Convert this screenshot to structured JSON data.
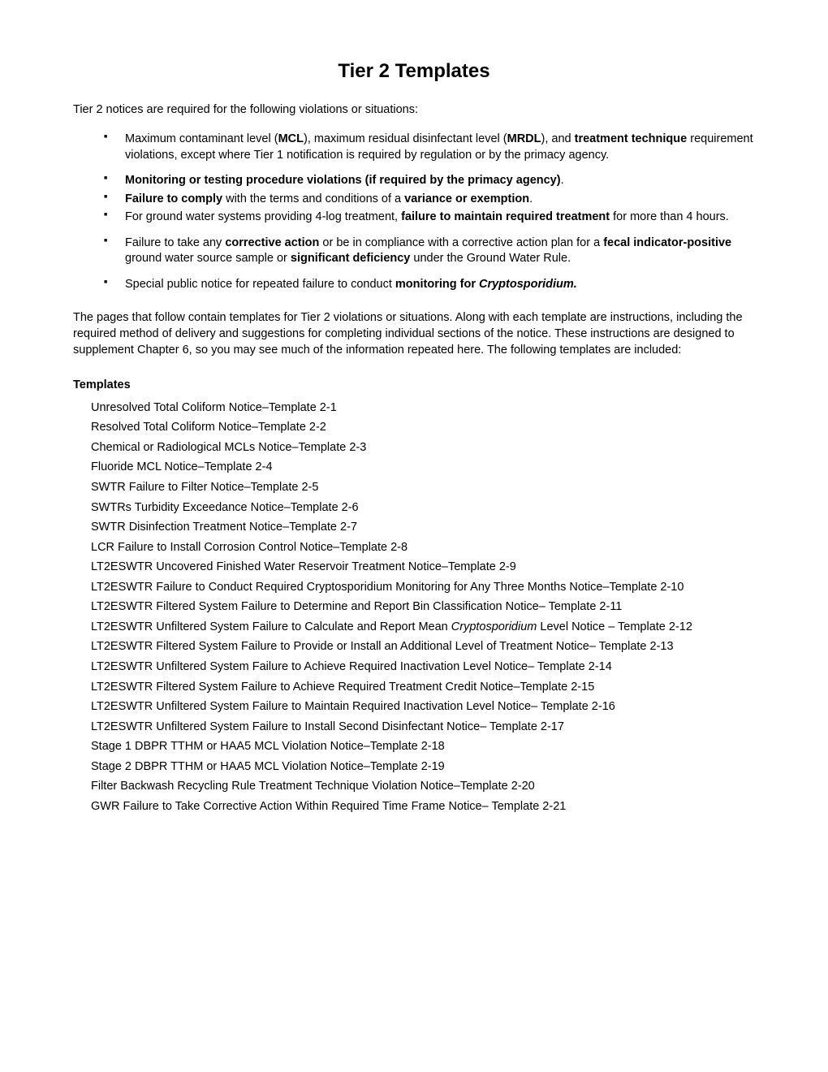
{
  "title": "Tier 2 Templates",
  "intro": "Tier 2 notices are required for the following violations or situations:",
  "bullets": [
    {
      "html": "Maximum contaminant level (<strong>MCL</strong>), maximum residual disinfectant level (<strong>MRDL</strong>), and <strong>treatment technique</strong> requirement violations, except where Tier 1 notification is required by regulation or by the primacy agency.",
      "spaced": true
    },
    {
      "html": "<strong>Monitoring or testing procedure violations (if required by the primacy agency)</strong>.",
      "spaced": false
    },
    {
      "html": "<strong>Failure to comply</strong> with the terms and conditions of a <strong>variance or exemption</strong>.",
      "spaced": false
    },
    {
      "html": "For ground water systems providing 4-log treatment, <strong>failure to maintain required treatment</strong> for more than 4 hours.",
      "spaced": true
    },
    {
      "html": "Failure to take any <strong>corrective action</strong> or be in compliance with a corrective action plan for a <strong>fecal indicator-positive</strong> ground water source sample or <strong>significant deficiency</strong> under the Ground Water Rule.",
      "spaced": true
    },
    {
      "html": "Special public notice for repeated failure to conduct <strong>monitoring for <em>Cryptosporidium.</em></strong>",
      "spaced": false
    }
  ],
  "after_bullets": "The pages that follow contain templates for Tier 2 violations or situations. Along with each template are instructions, including the required method of delivery and suggestions for completing individual sections of the notice. These instructions are designed to supplement Chapter 6, so you may see much of the information repeated here. The following templates are included:",
  "templates_label": "Templates",
  "templates": [
    "Unresolved Total Coliform Notice–Template 2-1",
    "Resolved Total Coliform Notice–Template 2-2",
    "Chemical or Radiological MCLs Notice–Template 2-3",
    "Fluoride MCL Notice–Template 2-4",
    "SWTR Failure to Filter Notice–Template 2-5",
    "SWTRs Turbidity Exceedance Notice–Template 2-6",
    "SWTR Disinfection Treatment Notice–Template 2-7",
    "LCR Failure to Install Corrosion Control Notice–Template 2-8",
    "LT2ESWTR Uncovered Finished Water Reservoir Treatment Notice–Template 2-9",
    "LT2ESWTR Failure to Conduct Required Cryptosporidium Monitoring for Any Three Months Notice–Template 2-10",
    "LT2ESWTR Filtered System Failure to Determine and Report Bin Classification Notice– Template 2-11",
    "LT2ESWTR Unfiltered System Failure to Calculate and Report Mean <em>Cryptosporidium</em> Level Notice – Template 2-12",
    "LT2ESWTR Filtered System Failure to Provide or Install an Additional Level of Treatment Notice– Template 2-13",
    "LT2ESWTR Unfiltered System Failure to Achieve Required Inactivation Level Notice– Template 2-14",
    "LT2ESWTR Filtered System Failure to Achieve Required Treatment Credit Notice–Template 2-15",
    "LT2ESWTR Unfiltered System Failure to Maintain Required Inactivation Level Notice– Template 2-16",
    "LT2ESWTR Unfiltered System Failure to Install Second Disinfectant Notice– Template 2-17",
    "Stage 1 DBPR TTHM or HAA5 MCL Violation Notice–Template 2-18",
    "Stage 2 DBPR TTHM or HAA5 MCL Violation Notice–Template 2-19",
    "Filter Backwash Recycling Rule Treatment Technique Violation Notice–Template 2-20",
    "GWR Failure to Take Corrective Action Within Required Time Frame Notice– Template 2-21"
  ]
}
